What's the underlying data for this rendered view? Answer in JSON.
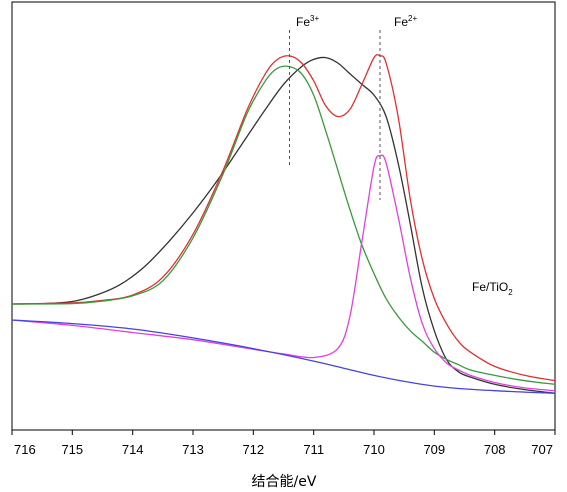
{
  "chart_data": {
    "type": "line",
    "xlabel": "结合能/eV",
    "xlim": [
      716,
      707
    ],
    "x_ticks": [
      "716",
      "715",
      "714",
      "713",
      "712",
      "711",
      "710",
      "709",
      "708",
      "707"
    ],
    "y_ticks_shown": false,
    "legend": "none",
    "annotations": {
      "fe3": {
        "base": "Fe",
        "sup": "3+",
        "x": 711.4
      },
      "fe2": {
        "base": "Fe",
        "sup": "2+",
        "x": 709.9
      },
      "sample": {
        "base": "Fe/TiO",
        "sub": "2"
      }
    },
    "series": [
      {
        "color": "#333333",
        "x": [
          716,
          715.5,
          715,
          714.6,
          714.2,
          713.8,
          713.4,
          713.0,
          712.6,
          712.2,
          711.8,
          711.5,
          711.2,
          711.0,
          710.8,
          710.6,
          710.4,
          710.2,
          710.0,
          709.8,
          709.6,
          709.4,
          709.2,
          709.0,
          708.8,
          708.6,
          708.4,
          708.0,
          707.5,
          707
        ],
        "y": [
          0.255,
          0.256,
          0.262,
          0.28,
          0.31,
          0.36,
          0.43,
          0.51,
          0.6,
          0.7,
          0.8,
          0.87,
          0.92,
          0.94,
          0.945,
          0.93,
          0.9,
          0.87,
          0.84,
          0.78,
          0.65,
          0.48,
          0.3,
          0.18,
          0.1,
          0.065,
          0.05,
          0.03,
          0.015,
          0.005
        ]
      },
      {
        "color": "#e03030",
        "x": [
          716,
          715,
          714.5,
          714,
          713.5,
          713,
          712.5,
          712.1,
          711.8,
          711.6,
          711.4,
          711.2,
          711.0,
          710.8,
          710.6,
          710.4,
          710.2,
          710.0,
          709.9,
          709.8,
          709.6,
          709.4,
          709.2,
          709.0,
          708.8,
          708.6,
          708.4,
          708.0,
          707.5,
          707
        ],
        "y": [
          0.255,
          0.258,
          0.265,
          0.28,
          0.33,
          0.45,
          0.63,
          0.8,
          0.9,
          0.94,
          0.95,
          0.93,
          0.88,
          0.81,
          0.78,
          0.8,
          0.87,
          0.945,
          0.95,
          0.93,
          0.78,
          0.55,
          0.38,
          0.27,
          0.2,
          0.15,
          0.12,
          0.08,
          0.055,
          0.04
        ]
      },
      {
        "color": "#3a9a3a",
        "x": [
          716,
          715,
          714.5,
          714,
          713.5,
          713,
          712.5,
          712.1,
          711.8,
          711.6,
          711.4,
          711.2,
          711.0,
          710.8,
          710.6,
          710.4,
          710.2,
          710.0,
          709.8,
          709.6,
          709.4,
          709.2,
          709.0,
          708.8,
          708.6,
          708.4,
          708.0,
          707.5,
          707
        ],
        "y": [
          0.255,
          0.256,
          0.263,
          0.278,
          0.32,
          0.44,
          0.62,
          0.79,
          0.88,
          0.915,
          0.92,
          0.9,
          0.84,
          0.74,
          0.63,
          0.52,
          0.42,
          0.34,
          0.27,
          0.22,
          0.18,
          0.15,
          0.12,
          0.1,
          0.085,
          0.07,
          0.055,
          0.04,
          0.03
        ]
      },
      {
        "color": "#e040e0",
        "x": [
          716,
          715,
          714,
          713,
          712,
          711.5,
          711.0,
          710.6,
          710.4,
          710.2,
          710.0,
          709.9,
          709.8,
          709.6,
          709.4,
          709.2,
          709.0,
          708.8,
          708.6,
          708.4,
          708.0,
          707.5,
          707
        ],
        "y": [
          0.21,
          0.195,
          0.175,
          0.155,
          0.128,
          0.115,
          0.105,
          0.13,
          0.22,
          0.43,
          0.64,
          0.67,
          0.65,
          0.5,
          0.33,
          0.2,
          0.13,
          0.09,
          0.07,
          0.055,
          0.035,
          0.02,
          0.012
        ]
      },
      {
        "color": "#4444dd",
        "x": [
          716,
          715,
          714,
          713,
          712,
          711,
          710.5,
          710,
          709.5,
          709,
          708.5,
          708,
          707.5,
          707
        ],
        "y": [
          0.21,
          0.2,
          0.185,
          0.16,
          0.13,
          0.095,
          0.075,
          0.055,
          0.038,
          0.025,
          0.017,
          0.012,
          0.008,
          0.005
        ]
      }
    ]
  }
}
